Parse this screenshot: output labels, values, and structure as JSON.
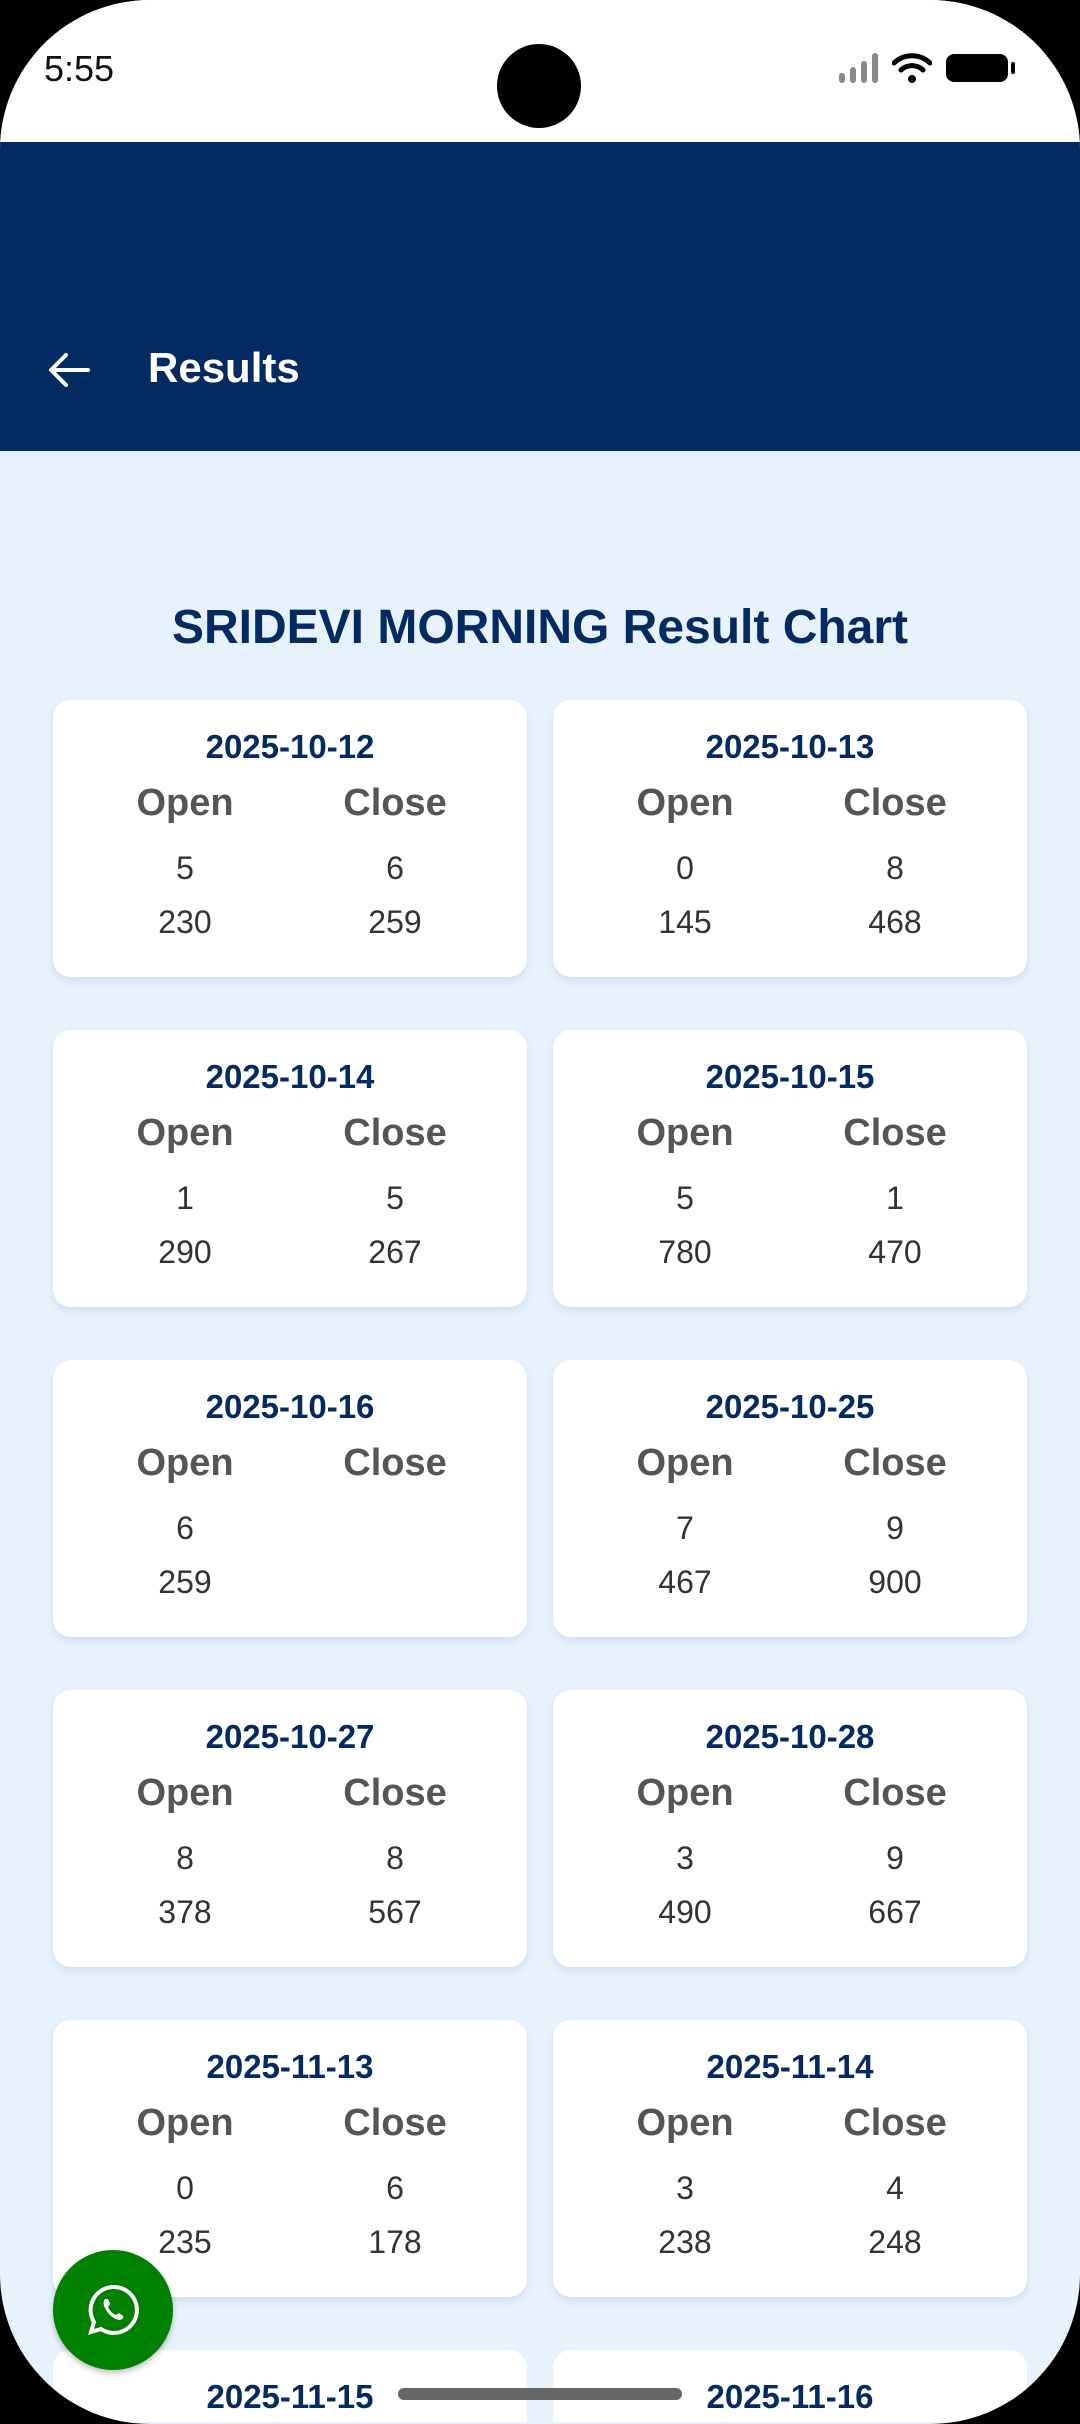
{
  "status": {
    "time": "5:55"
  },
  "appbar": {
    "title": "Results"
  },
  "page": {
    "title": "SRIDEVI MORNING Result Chart",
    "open_label": "Open",
    "close_label": "Close"
  },
  "colors": {
    "primary": "#042a62",
    "background": "#e8f2fd",
    "whatsapp": "#008000"
  },
  "results": [
    {
      "date": "2025-10-12",
      "open_digit": "5",
      "close_digit": "6",
      "open_pana": "230",
      "close_pana": "259"
    },
    {
      "date": "2025-10-13",
      "open_digit": "0",
      "close_digit": "8",
      "open_pana": "145",
      "close_pana": "468"
    },
    {
      "date": "2025-10-14",
      "open_digit": "1",
      "close_digit": "5",
      "open_pana": "290",
      "close_pana": "267"
    },
    {
      "date": "2025-10-15",
      "open_digit": "5",
      "close_digit": "1",
      "open_pana": "780",
      "close_pana": "470"
    },
    {
      "date": "2025-10-16",
      "open_digit": "6",
      "close_digit": "",
      "open_pana": "259",
      "close_pana": ""
    },
    {
      "date": "2025-10-25",
      "open_digit": "7",
      "close_digit": "9",
      "open_pana": "467",
      "close_pana": "900"
    },
    {
      "date": "2025-10-27",
      "open_digit": "8",
      "close_digit": "8",
      "open_pana": "378",
      "close_pana": "567"
    },
    {
      "date": "2025-10-28",
      "open_digit": "3",
      "close_digit": "9",
      "open_pana": "490",
      "close_pana": "667"
    },
    {
      "date": "2025-11-13",
      "open_digit": "0",
      "close_digit": "6",
      "open_pana": "235",
      "close_pana": "178"
    },
    {
      "date": "2025-11-14",
      "open_digit": "3",
      "close_digit": "4",
      "open_pana": "238",
      "close_pana": "248"
    },
    {
      "date": "2025-11-15",
      "open_digit": "",
      "close_digit": "",
      "open_pana": "",
      "close_pana": ""
    },
    {
      "date": "2025-11-16",
      "open_digit": "",
      "close_digit": "",
      "open_pana": "",
      "close_pana": ""
    }
  ],
  "fab": {
    "icon": "whatsapp-icon"
  }
}
